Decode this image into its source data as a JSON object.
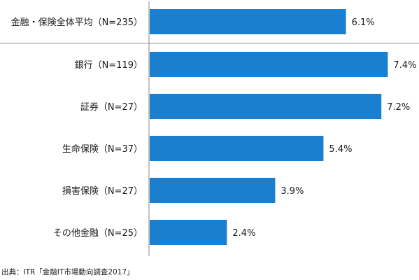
{
  "chart_data": {
    "type": "bar",
    "orientation": "horizontal",
    "categories": [
      "金融・保険全体平均（N=235）",
      "銀行（N=119）",
      "証券（N=27）",
      "生命保険（N=37）",
      "損害保険（N=27）",
      "その他金融（N=25）"
    ],
    "values": [
      6.1,
      7.4,
      7.2,
      5.4,
      3.9,
      2.4
    ],
    "value_labels": [
      "6.1%",
      "7.4%",
      "7.2%",
      "5.4%",
      "3.9%",
      "2.4%"
    ],
    "bar_color": "#1b7fd0",
    "separator_after_first": true,
    "grid": false
  },
  "source_text": "出典：ITR「金融IT市場動向調査2017」"
}
